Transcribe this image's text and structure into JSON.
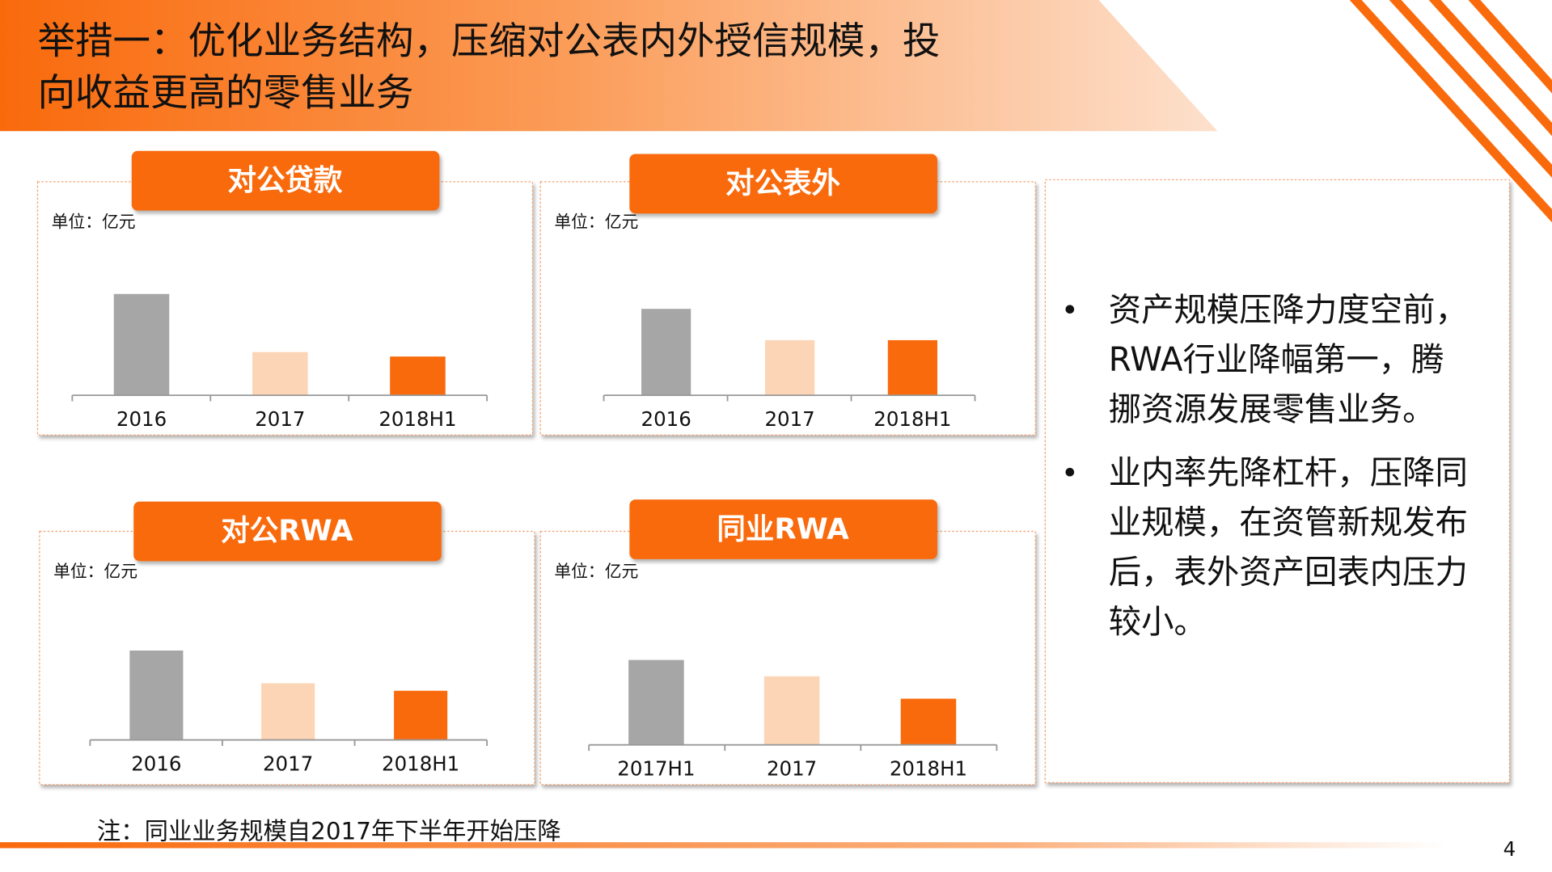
{
  "header": {
    "title_lines": [
      "举措一：优化业务结构，压缩对公表内外授信规模，投",
      "向收益更高的零售业务"
    ]
  },
  "chart_data": [
    {
      "type": "bar",
      "title": "对公贷款",
      "unit": "单位：亿元",
      "categories": [
        "2016",
        "2017",
        "2018H1"
      ],
      "values": [
        68,
        29,
        26
      ],
      "colors": [
        "#a6a6a6",
        "#fbd5b5",
        "#f96a0c"
      ],
      "ylim": [
        0,
        100
      ]
    },
    {
      "type": "bar",
      "title": "对公表外",
      "unit": "单位：亿元",
      "categories": [
        "2016",
        "2017",
        "2018H1"
      ],
      "values": [
        58,
        37,
        37
      ],
      "colors": [
        "#a6a6a6",
        "#fbd5b5",
        "#f96a0c"
      ],
      "ylim": [
        0,
        100
      ]
    },
    {
      "type": "bar",
      "title": "对公RWA",
      "unit": "单位：亿元",
      "categories": [
        "2016",
        "2017",
        "2018H1"
      ],
      "values": [
        60,
        38,
        33
      ],
      "colors": [
        "#a6a6a6",
        "#fbd5b5",
        "#f96a0c"
      ],
      "ylim": [
        0,
        100
      ]
    },
    {
      "type": "bar",
      "title": "同业RWA",
      "unit": "单位：亿元",
      "categories": [
        "2017H1",
        "2017",
        "2018H1"
      ],
      "values": [
        57,
        46,
        31
      ],
      "colors": [
        "#a6a6a6",
        "#fbd5b5",
        "#f96a0c"
      ],
      "ylim": [
        0,
        100
      ]
    }
  ],
  "bullets": [
    [
      "资产规模压降力度空前，",
      "RWA行业降幅第一，腾",
      "挪资源发展零售业务。"
    ],
    [
      "业内率先降杠杆，压降同",
      "业规模，在资管新规发布",
      "后，表外资产回表内压力",
      "较小。"
    ]
  ],
  "note": "注：同业业务规模自2017年下半年开始压降",
  "page_number": "4"
}
